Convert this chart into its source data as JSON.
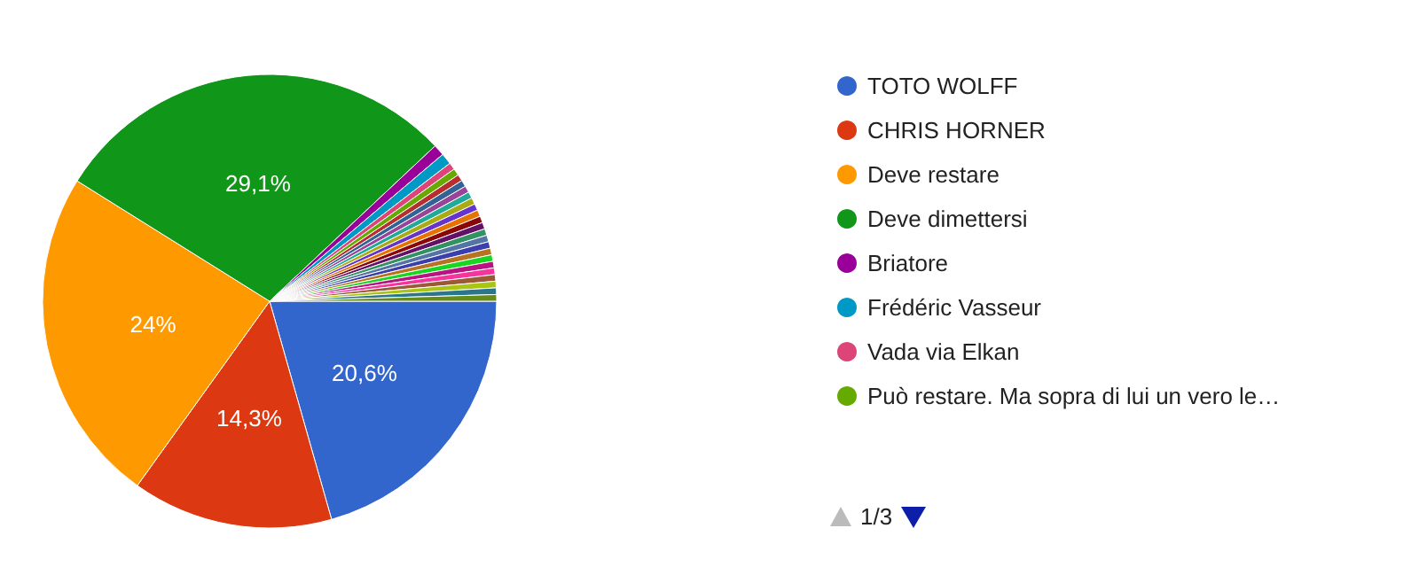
{
  "chart_data": {
    "type": "pie",
    "categories": [
      "TOTO WOLFF",
      "CHRIS HORNER",
      "Deve restare",
      "Deve dimettersi",
      "Briatore",
      "Frédéric Vasseur",
      "Vada via Elkan",
      "Può restare. Ma sopra di lui un vero le…",
      null,
      null,
      null,
      null,
      null,
      null,
      null,
      null,
      null,
      null,
      null,
      null,
      null,
      null,
      null,
      null,
      null,
      null,
      null,
      null
    ],
    "values": [
      20.6,
      14.3,
      24,
      29.1,
      0.8,
      0.8,
      0.5,
      0.5,
      0.47,
      0.47,
      0.47,
      0.47,
      0.47,
      0.47,
      0.47,
      0.47,
      0.47,
      0.47,
      0.47,
      0.47,
      0.47,
      0.47,
      0.47,
      0.47,
      0.47,
      0.47,
      0.47,
      0.47
    ],
    "colors": [
      "#3366cc",
      "#dc3912",
      "#ff9900",
      "#109618",
      "#990099",
      "#0099c6",
      "#dd4477",
      "#66aa00",
      "#b82e2e",
      "#316395",
      "#994499",
      "#22aa99",
      "#aaaa11",
      "#6633cc",
      "#e67300",
      "#8b0707",
      "#651067",
      "#329262",
      "#5574a6",
      "#3b3eac",
      "#b77322",
      "#16d620",
      "#b91383",
      "#f4359e",
      "#9c5935",
      "#a9c413",
      "#2a778d",
      "#668d1c"
    ],
    "value_labels": [
      "20,6%",
      "14,3%",
      "24%",
      "29,1%",
      null,
      null,
      null,
      null,
      null,
      null,
      null,
      null,
      null,
      null,
      null,
      null,
      null,
      null,
      null,
      null,
      null,
      null,
      null,
      null,
      null,
      null,
      null,
      null
    ],
    "legend": "right",
    "annotations": [
      "1/3"
    ]
  }
}
